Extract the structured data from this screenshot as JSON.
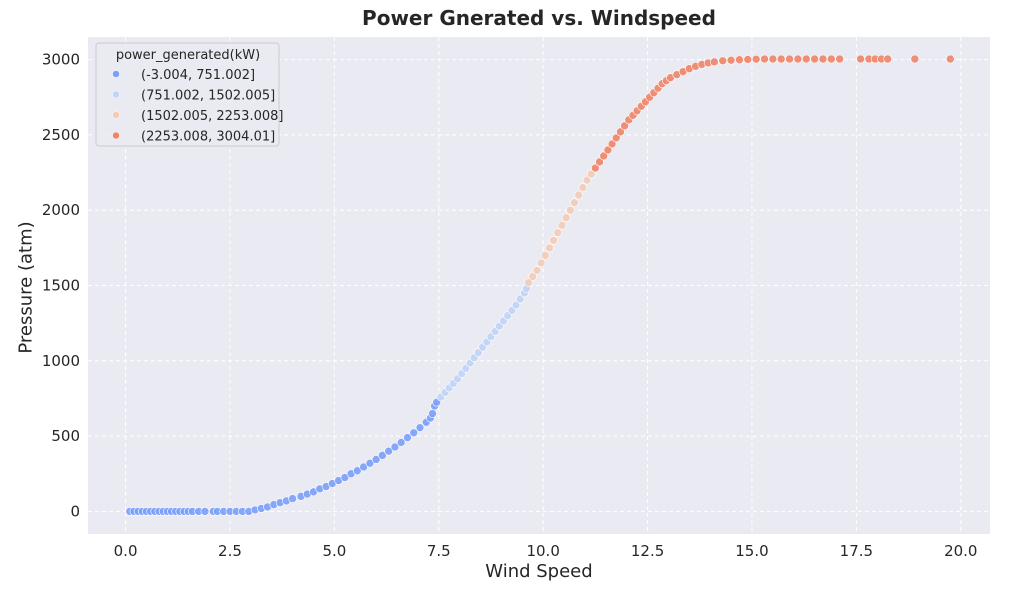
{
  "chart_data": {
    "type": "scatter",
    "title": "Power Gnerated vs. Windspeed",
    "xlabel": "Wind Speed",
    "ylabel": "Pressure (atm)",
    "xlim": [
      -0.9,
      20.7
    ],
    "ylim": [
      -150,
      3150
    ],
    "xticks": [
      0.0,
      2.5,
      5.0,
      7.5,
      10.0,
      12.5,
      15.0,
      17.5,
      20.0
    ],
    "xtick_labels": [
      "0.0",
      "2.5",
      "5.0",
      "7.5",
      "10.0",
      "12.5",
      "15.0",
      "17.5",
      "20.0"
    ],
    "yticks": [
      0,
      500,
      1000,
      1500,
      2000,
      2500,
      3000
    ],
    "ytick_labels": [
      "0",
      "500",
      "1000",
      "1500",
      "2000",
      "2500",
      "3000"
    ],
    "grid": true,
    "grid_style": "dashed",
    "background": "#eaeaf2",
    "legend": {
      "title": "power_generated(kW)",
      "location": "top-left",
      "entries": [
        {
          "label": "(-3.004, 751.002]",
          "color": "#7b9ff9"
        },
        {
          "label": "(751.002, 1502.005]",
          "color": "#c0d4f5"
        },
        {
          "label": "(1502.005, 2253.008]",
          "color": "#f2cbb7"
        },
        {
          "label": "(2253.008, 3004.01]",
          "color": "#ee8468"
        }
      ]
    },
    "bins": [
      751.002,
      1502.005,
      2253.008
    ],
    "series": [
      {
        "values_xy": [
          [
            0.1,
            0
          ],
          [
            0.2,
            0
          ],
          [
            0.3,
            0
          ],
          [
            0.4,
            0
          ],
          [
            0.5,
            0
          ],
          [
            0.6,
            0
          ],
          [
            0.7,
            0
          ],
          [
            0.8,
            0
          ],
          [
            0.9,
            0
          ],
          [
            1.0,
            0
          ],
          [
            1.1,
            0
          ],
          [
            1.2,
            0
          ],
          [
            1.3,
            0
          ],
          [
            1.4,
            0
          ],
          [
            1.5,
            0
          ],
          [
            1.6,
            0
          ],
          [
            1.75,
            0
          ],
          [
            1.9,
            0
          ],
          [
            2.1,
            0
          ],
          [
            2.2,
            0
          ],
          [
            2.35,
            0
          ],
          [
            2.5,
            0
          ],
          [
            2.65,
            0
          ],
          [
            2.8,
            0
          ],
          [
            2.95,
            0
          ],
          [
            3.1,
            10
          ],
          [
            3.25,
            20
          ],
          [
            3.4,
            30
          ],
          [
            3.55,
            45
          ],
          [
            3.7,
            58
          ],
          [
            3.85,
            70
          ],
          [
            4.0,
            85
          ],
          [
            4.2,
            100
          ],
          [
            4.35,
            115
          ],
          [
            4.5,
            130
          ],
          [
            4.65,
            150
          ],
          [
            4.8,
            165
          ],
          [
            4.95,
            185
          ],
          [
            5.1,
            205
          ],
          [
            5.25,
            225
          ],
          [
            5.4,
            250
          ],
          [
            5.55,
            270
          ],
          [
            5.7,
            295
          ],
          [
            5.85,
            320
          ],
          [
            6.0,
            345
          ],
          [
            6.15,
            372
          ],
          [
            6.3,
            400
          ],
          [
            6.45,
            428
          ],
          [
            6.6,
            458
          ],
          [
            6.75,
            490
          ],
          [
            6.9,
            522
          ],
          [
            7.05,
            556
          ],
          [
            7.2,
            592
          ],
          [
            7.3,
            620
          ],
          [
            7.35,
            650
          ],
          [
            7.4,
            700
          ],
          [
            7.45,
            725
          ]
        ]
      },
      {
        "values_xy": [
          [
            7.55,
            760
          ],
          [
            7.65,
            790
          ],
          [
            7.75,
            820
          ],
          [
            7.85,
            850
          ],
          [
            7.95,
            880
          ],
          [
            8.05,
            915
          ],
          [
            8.15,
            950
          ],
          [
            8.25,
            985
          ],
          [
            8.35,
            1020
          ],
          [
            8.45,
            1055
          ],
          [
            8.55,
            1090
          ],
          [
            8.65,
            1125
          ],
          [
            8.75,
            1160
          ],
          [
            8.85,
            1195
          ],
          [
            8.95,
            1230
          ],
          [
            9.05,
            1265
          ],
          [
            9.15,
            1300
          ],
          [
            9.25,
            1335
          ],
          [
            9.35,
            1370
          ],
          [
            9.45,
            1410
          ],
          [
            9.55,
            1450
          ],
          [
            9.6,
            1480
          ]
        ]
      },
      {
        "values_xy": [
          [
            9.65,
            1520
          ],
          [
            9.75,
            1560
          ],
          [
            9.85,
            1600
          ],
          [
            9.95,
            1650
          ],
          [
            10.05,
            1700
          ],
          [
            10.15,
            1750
          ],
          [
            10.25,
            1800
          ],
          [
            10.35,
            1850
          ],
          [
            10.45,
            1900
          ],
          [
            10.55,
            1950
          ],
          [
            10.65,
            2000
          ],
          [
            10.75,
            2050
          ],
          [
            10.85,
            2100
          ],
          [
            10.95,
            2150
          ],
          [
            11.05,
            2200
          ],
          [
            11.15,
            2240
          ]
        ]
      },
      {
        "values_xy": [
          [
            11.25,
            2280
          ],
          [
            11.35,
            2320
          ],
          [
            11.45,
            2360
          ],
          [
            11.55,
            2400
          ],
          [
            11.65,
            2440
          ],
          [
            11.75,
            2480
          ],
          [
            11.85,
            2520
          ],
          [
            11.95,
            2560
          ],
          [
            12.05,
            2600
          ],
          [
            12.15,
            2630
          ],
          [
            12.25,
            2660
          ],
          [
            12.35,
            2690
          ],
          [
            12.45,
            2720
          ],
          [
            12.55,
            2750
          ],
          [
            12.65,
            2780
          ],
          [
            12.75,
            2810
          ],
          [
            12.85,
            2840
          ],
          [
            12.95,
            2860
          ],
          [
            13.05,
            2880
          ],
          [
            13.2,
            2900
          ],
          [
            13.35,
            2920
          ],
          [
            13.5,
            2940
          ],
          [
            13.65,
            2955
          ],
          [
            13.8,
            2968
          ],
          [
            13.95,
            2978
          ],
          [
            14.1,
            2985
          ],
          [
            14.3,
            2992
          ],
          [
            14.5,
            2996
          ],
          [
            14.7,
            2999
          ],
          [
            14.9,
            3001
          ],
          [
            15.1,
            3003
          ],
          [
            15.3,
            3004
          ],
          [
            15.5,
            3004
          ],
          [
            15.7,
            3004
          ],
          [
            15.9,
            3004
          ],
          [
            16.1,
            3004
          ],
          [
            16.3,
            3004
          ],
          [
            16.5,
            3004
          ],
          [
            16.7,
            3004
          ],
          [
            16.9,
            3004
          ],
          [
            17.1,
            3004
          ],
          [
            17.6,
            3004
          ],
          [
            17.8,
            3004
          ],
          [
            17.95,
            3004
          ],
          [
            18.1,
            3004
          ],
          [
            18.25,
            3004
          ],
          [
            18.9,
            3004
          ],
          [
            19.75,
            3004
          ]
        ]
      }
    ]
  }
}
